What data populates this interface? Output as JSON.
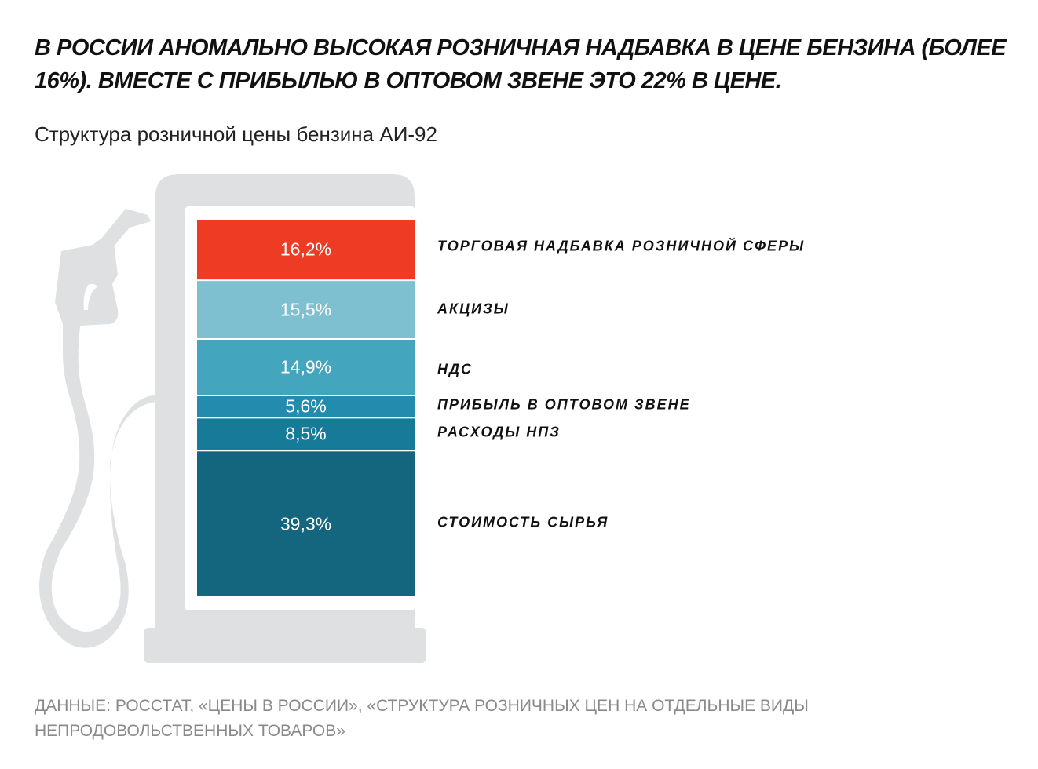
{
  "title": "В РОССИИ АНОМАЛЬНО ВЫСОКАЯ РОЗНИЧНАЯ НАДБАВКА В ЦЕНЕ БЕНЗИНА (БОЛЕЕ 16%). ВМЕСТЕ С ПРИБЫЛЬЮ В ОПТОВОМ ЗВЕНЕ ЭТО 22% В ЦЕНЕ.",
  "subtitle": "Структура розничной цены бензина АИ-92",
  "source": "ДАННЫЕ: РОССТАТ, «ЦЕНЫ В РОССИИ», «СТРУКТУРА РОЗНИЧНЫХ ЦЕН НА ОТДЕЛЬНЫЕ ВИДЫ НЕПРОДОВОЛЬСТВЕННЫХ ТОВАРОВ»",
  "chart_data": {
    "type": "bar",
    "stacked": true,
    "title": "Структура розничной цены бензина АИ-92",
    "unit": "%",
    "categories": [
      "ТОРГОВАЯ НАДБАВКА РОЗНИЧНОЙ СФЕРЫ",
      "АКЦИЗЫ",
      "НДС",
      "ПРИБЫЛЬ В ОПТОВОМ ЗВЕНЕ",
      "РАСХОДЫ НПЗ",
      "СТОИМОСТЬ СЫРЬЯ"
    ],
    "values": [
      16.2,
      15.5,
      14.9,
      5.6,
      8.5,
      39.3
    ],
    "labels": [
      "16,2%",
      "15,5%",
      "14,9%",
      "5,6%",
      "8,5%",
      "39,3%"
    ],
    "colors": [
      "#EE3B24",
      "#7FC0D0",
      "#43A5BE",
      "#228BAE",
      "#177A98",
      "#13667E"
    ]
  }
}
